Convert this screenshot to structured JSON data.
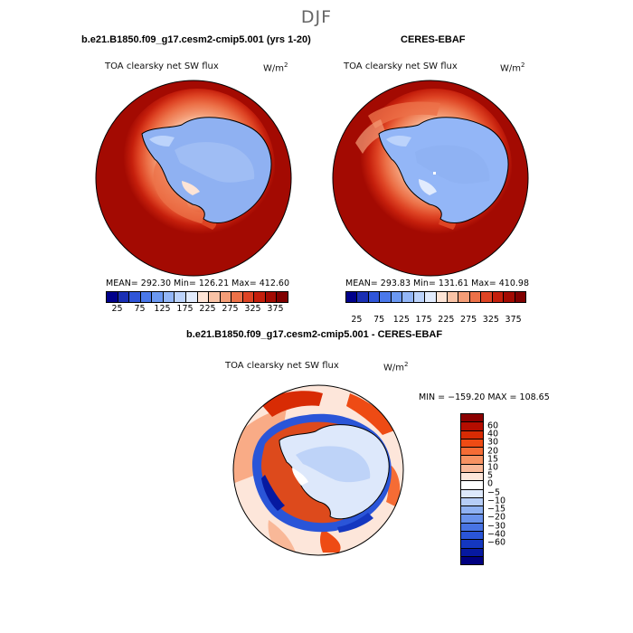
{
  "season": "DJF",
  "panels": {
    "model": {
      "title": "b.e21.B1850.f09_g17.cesm2-cmip5.001 (yrs 1-20)",
      "variable_label": "TOA clearsky net SW flux",
      "units_base": "W/m",
      "units_exp": "2",
      "stats": "MEAN=  292.30   Min=  126.21   Max=  412.60"
    },
    "obs": {
      "title": "CERES-EBAF",
      "variable_label": "TOA clearsky net SW flux",
      "units_base": "W/m",
      "units_exp": "2",
      "stats": "MEAN=  293.83   Min=  131.61   Max=  410.98"
    },
    "diff": {
      "title": "b.e21.B1850.f09_g17.cesm2-cmip5.001 - CERES-EBAF",
      "variable_label": "TOA clearsky net SW flux",
      "units_base": "W/m",
      "units_exp": "2",
      "stats": "MIN = −159.20  MAX = 108.65"
    }
  },
  "colorbar_abs": {
    "colors": [
      "#00008b",
      "#1a2fb4",
      "#2f55d8",
      "#4a78ea",
      "#6b98f2",
      "#93b6f7",
      "#bcd3fb",
      "#e1ebfd",
      "#fde4d6",
      "#f9c3a6",
      "#f49d77",
      "#ec7148",
      "#de4424",
      "#c51f0c",
      "#a30a02",
      "#800000"
    ],
    "tick_labels": [
      "25",
      "75",
      "125",
      "175",
      "225",
      "275",
      "325",
      "375"
    ]
  },
  "colorbar_diff": {
    "colors": [
      "#8b0000",
      "#b50d00",
      "#d82b04",
      "#ee4b14",
      "#f56c35",
      "#f79262",
      "#f9b898",
      "#fde6da",
      "#ffffff",
      "#dde8fb",
      "#b6cdf7",
      "#8fb1f2",
      "#6a93ec",
      "#4874e4",
      "#2a55d8",
      "#1437c0",
      "#0619a0",
      "#000080"
    ],
    "tick_labels": [
      "60",
      "40",
      "30",
      "20",
      "15",
      "10",
      "5",
      "0",
      "−5",
      "−10",
      "−15",
      "−20",
      "−30",
      "−40",
      "−60"
    ]
  },
  "chart_data": [
    {
      "type": "heatmap",
      "title": "b.e21.B1850.f09_g17.cesm2-cmip5.001 (yrs 1-20)",
      "projection": "south-polar-stereographic",
      "variable": "TOA clearsky net SW flux",
      "units": "W/m2",
      "mean": 292.3,
      "min": 126.21,
      "max": 412.6,
      "contour_levels": [
        25,
        50,
        75,
        100,
        125,
        150,
        175,
        200,
        225,
        250,
        275,
        300,
        325,
        350,
        375
      ],
      "colorbar_tick_labels": [
        25,
        75,
        125,
        175,
        225,
        275,
        325,
        375
      ]
    },
    {
      "type": "heatmap",
      "title": "CERES-EBAF",
      "projection": "south-polar-stereographic",
      "variable": "TOA clearsky net SW flux",
      "units": "W/m2",
      "mean": 293.83,
      "min": 131.61,
      "max": 410.98,
      "contour_levels": [
        25,
        50,
        75,
        100,
        125,
        150,
        175,
        200,
        225,
        250,
        275,
        300,
        325,
        350,
        375
      ],
      "colorbar_tick_labels": [
        25,
        75,
        125,
        175,
        225,
        275,
        325,
        375
      ]
    },
    {
      "type": "heatmap",
      "title": "b.e21.B1850.f09_g17.cesm2-cmip5.001 - CERES-EBAF",
      "projection": "south-polar-stereographic",
      "variable": "TOA clearsky net SW flux",
      "units": "W/m2",
      "min": -159.2,
      "max": 108.65,
      "contour_levels": [
        60,
        40,
        30,
        20,
        15,
        10,
        5,
        0,
        -5,
        -10,
        -15,
        -20,
        -30,
        -40,
        -60
      ]
    }
  ]
}
